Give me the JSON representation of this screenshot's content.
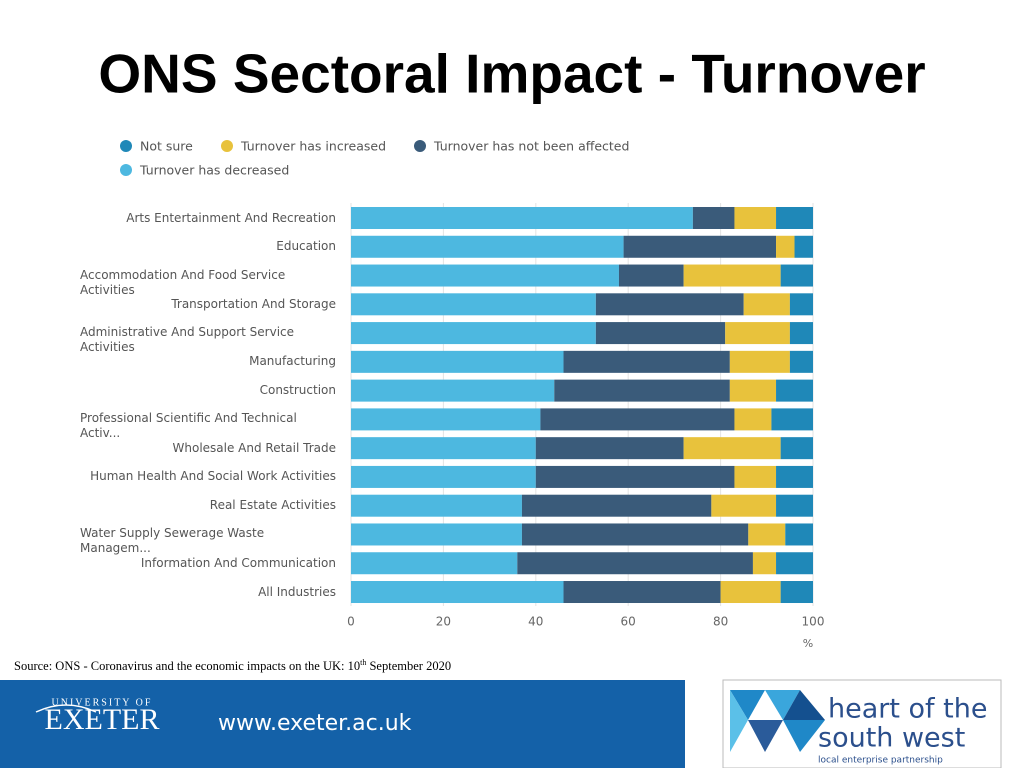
{
  "chart_data": {
    "type": "bar",
    "orientation": "horizontal",
    "stacked": true,
    "title": "ONS Sectoral Impact - Turnover",
    "categories": [
      "Arts Entertainment And Recreation",
      "Education",
      "Accommodation And Food Service Activities",
      "Transportation And Storage",
      "Administrative And Support Service Activities",
      "Manufacturing",
      "Construction",
      "Professional Scientific And Technical Activ...",
      "Wholesale And Retail Trade",
      "Human Health And Social Work Activities",
      "Real Estate Activities",
      "Water Supply Sewerage Waste Managem...",
      "Information And Communication",
      "All Industries"
    ],
    "series": [
      {
        "name": "Turnover has decreased",
        "color": "#4db8e0",
        "values": [
          74,
          59,
          58,
          53,
          53,
          46,
          44,
          41,
          40,
          40,
          37,
          37,
          36,
          46
        ]
      },
      {
        "name": "Turnover has not been affected",
        "color": "#3a5b7a",
        "values": [
          9,
          33,
          14,
          32,
          28,
          36,
          38,
          42,
          32,
          43,
          41,
          49,
          51,
          34
        ]
      },
      {
        "name": "Turnover has increased",
        "color": "#e8c23c",
        "values": [
          9,
          4,
          21,
          10,
          14,
          13,
          10,
          8,
          21,
          9,
          14,
          8,
          5,
          13
        ]
      },
      {
        "name": "Not sure",
        "color": "#1f88b8",
        "values": [
          8,
          4,
          7,
          5,
          5,
          5,
          8,
          9,
          7,
          8,
          8,
          6,
          8,
          7
        ]
      }
    ],
    "xlim": [
      0,
      100
    ],
    "xticks": [
      0,
      20,
      40,
      60,
      80,
      100
    ],
    "xlabel": "%",
    "grid": true
  },
  "source": {
    "text": "Source: ONS - Coronavirus and the economic impacts on the UK: 10",
    "sup": "th",
    "rest": " September 2020"
  },
  "footer": {
    "university_of": "UNIVERSITY OF",
    "exeter": "EXETER",
    "url": "www.exeter.ac.uk",
    "hotsw_line1": "heart of the",
    "hotsw_line2": "south west",
    "hotsw_tagline": "local enterprise partnership"
  }
}
